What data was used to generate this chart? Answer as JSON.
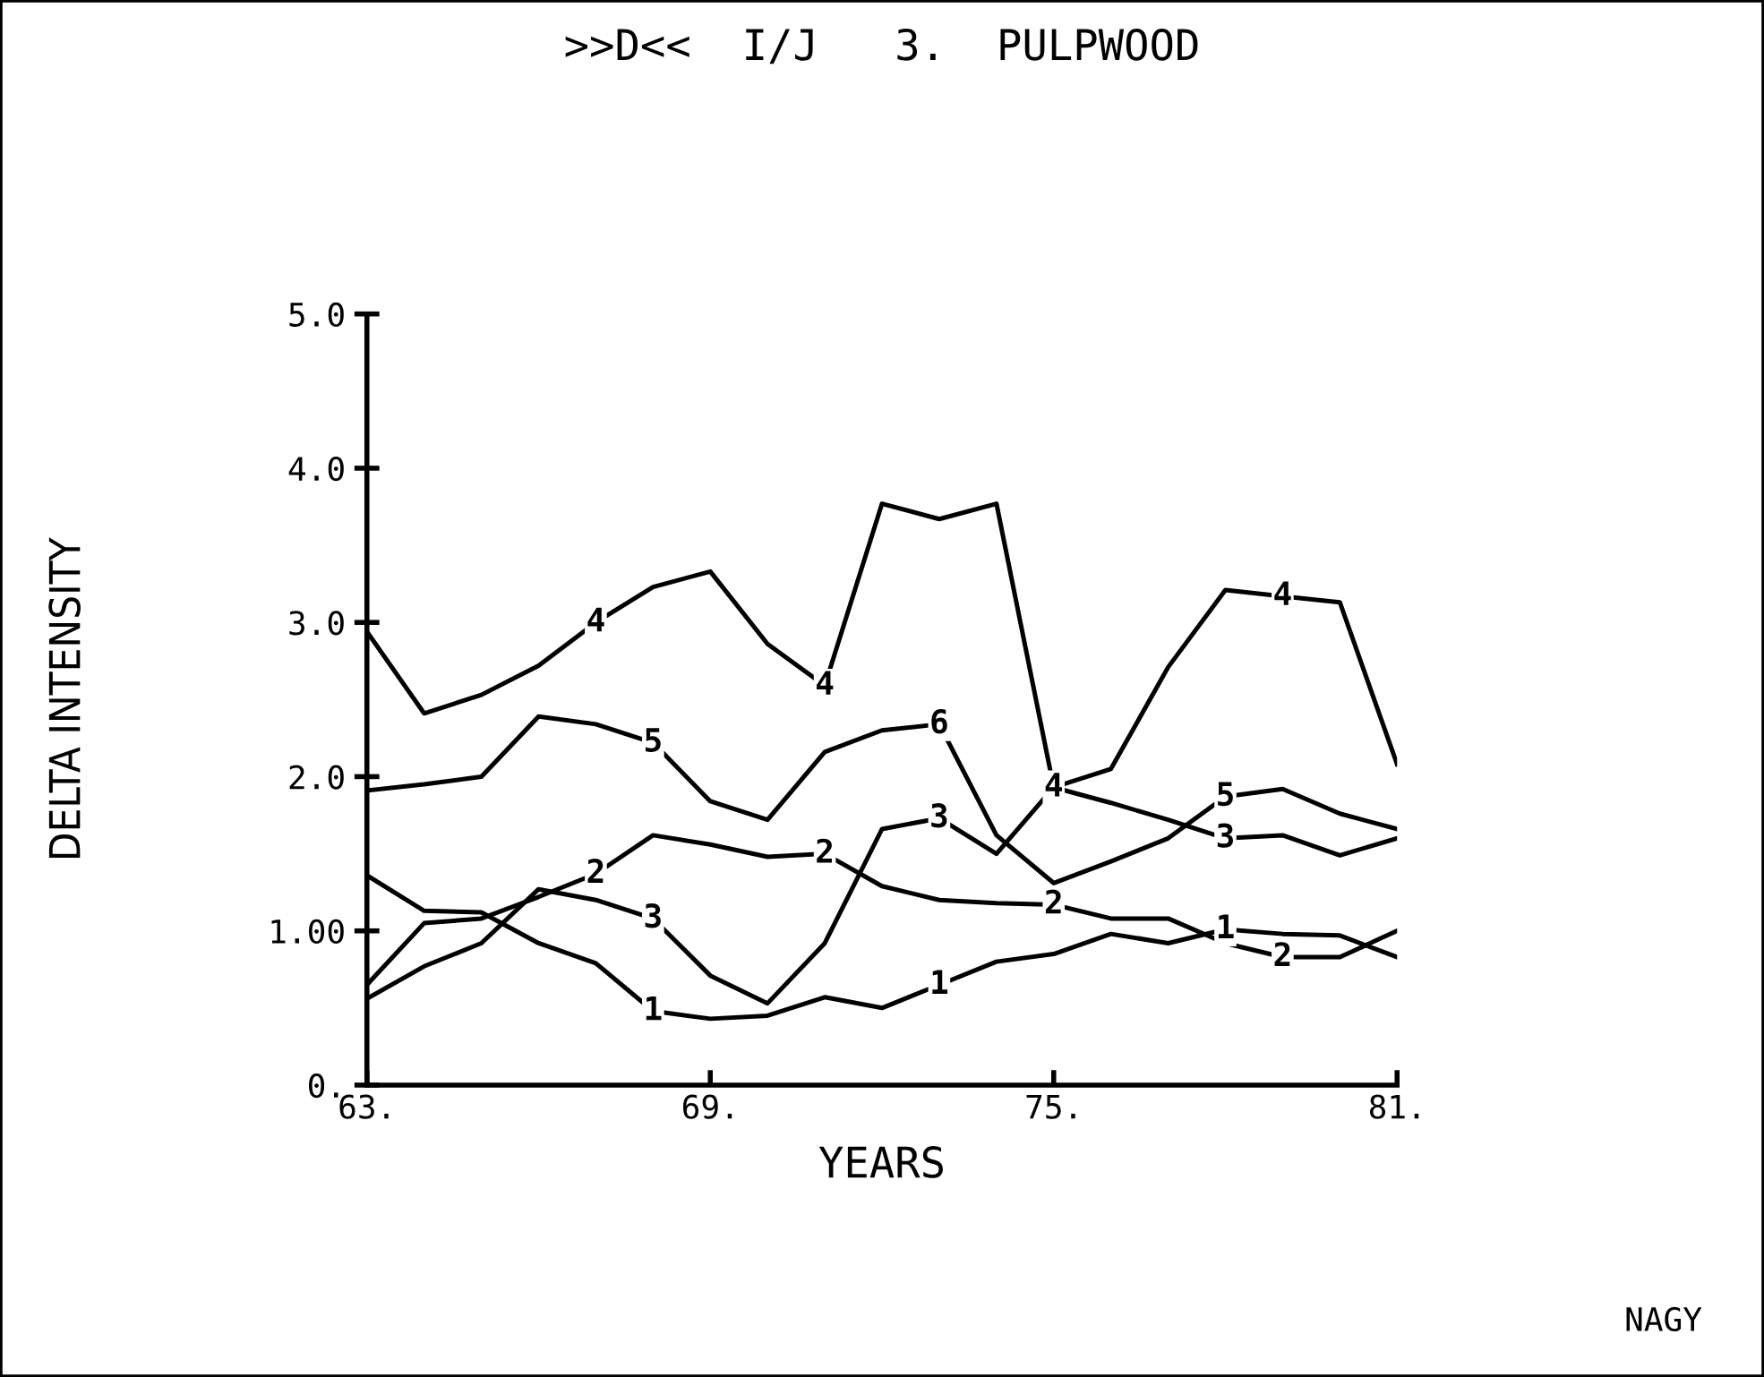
{
  "chart_data": {
    "type": "line",
    "title": ">>D<<  I/J   3.  PULPWOOD",
    "xlabel": "YEARS",
    "ylabel": "DELTA INTENSITY",
    "x": [
      63,
      64,
      65,
      66,
      67,
      68,
      69,
      70,
      71,
      72,
      73,
      74,
      75,
      76,
      77,
      78,
      79,
      80,
      81
    ],
    "series": [
      {
        "color": "#000000",
        "values": [
          2.94,
          2.41,
          2.53,
          2.72,
          3.0,
          3.23,
          3.33,
          2.86,
          2.59,
          3.77,
          3.67,
          3.77,
          1.93,
          2.05,
          2.71,
          3.21,
          3.17,
          3.13,
          2.08
        ]
      },
      {
        "color": "#000000",
        "values": [
          1.91,
          1.95,
          2.0,
          2.39,
          2.34,
          2.22,
          1.84,
          1.72,
          2.16,
          2.3,
          2.34,
          1.62,
          1.31,
          1.45,
          1.6,
          1.87,
          1.92,
          1.76,
          1.66
        ]
      },
      {
        "color": "#000000",
        "values": [
          0.56,
          0.77,
          0.92,
          1.27,
          1.2,
          1.08,
          0.71,
          0.53,
          0.92,
          1.66,
          1.73,
          1.5,
          1.93,
          1.83,
          1.72,
          1.6,
          1.62,
          1.49,
          1.6
        ]
      },
      {
        "color": "#000000",
        "values": [
          0.65,
          1.05,
          1.08,
          1.22,
          1.37,
          1.62,
          1.56,
          1.48,
          1.5,
          1.29,
          1.2,
          1.18,
          1.17,
          1.08,
          1.08,
          0.92,
          0.83,
          0.83,
          1.0
        ]
      },
      {
        "color": "#000000",
        "values": [
          1.36,
          1.13,
          1.12,
          0.92,
          0.79,
          0.48,
          0.43,
          0.45,
          0.57,
          0.5,
          0.65,
          0.8,
          0.85,
          0.98,
          0.92,
          1.01,
          0.98,
          0.97,
          0.83
        ]
      }
    ],
    "xlim": [
      63,
      81
    ],
    "ylim": [
      0,
      5
    ],
    "xticks": [
      {
        "value": 63,
        "label": "63."
      },
      {
        "value": 69,
        "label": "69."
      },
      {
        "value": 75,
        "label": "75."
      },
      {
        "value": 81,
        "label": "81."
      }
    ],
    "yticks": [
      {
        "value": 0,
        "label": "0."
      },
      {
        "value": 1,
        "label": "1.00"
      },
      {
        "value": 2,
        "label": "2.0"
      },
      {
        "value": 3,
        "label": "3.0"
      },
      {
        "value": 4,
        "label": "4.0"
      },
      {
        "value": 5,
        "label": "5.0"
      }
    ],
    "marker": "none",
    "line_style": "solid",
    "annotations": [
      {
        "text": "4",
        "x": 67,
        "y": 3.0
      },
      {
        "text": "4",
        "x": 71,
        "y": 2.59
      },
      {
        "text": "4",
        "x": 75,
        "y": 1.93
      },
      {
        "text": "4",
        "x": 79,
        "y": 3.17
      },
      {
        "text": "5",
        "x": 68,
        "y": 2.22
      },
      {
        "text": "6",
        "x": 73,
        "y": 2.34
      },
      {
        "text": "5",
        "x": 78,
        "y": 1.87
      },
      {
        "text": "3",
        "x": 68,
        "y": 1.08
      },
      {
        "text": "3",
        "x": 73,
        "y": 1.73
      },
      {
        "text": "3",
        "x": 78,
        "y": 1.6
      },
      {
        "text": "2",
        "x": 67,
        "y": 1.37
      },
      {
        "text": "2",
        "x": 71,
        "y": 1.5
      },
      {
        "text": "2",
        "x": 75,
        "y": 1.17
      },
      {
        "text": "2",
        "x": 79,
        "y": 0.83
      },
      {
        "text": "1",
        "x": 68,
        "y": 0.48
      },
      {
        "text": "1",
        "x": 73,
        "y": 0.65
      },
      {
        "text": "1",
        "x": 78,
        "y": 1.01
      },
      "NAGY"
    ]
  }
}
